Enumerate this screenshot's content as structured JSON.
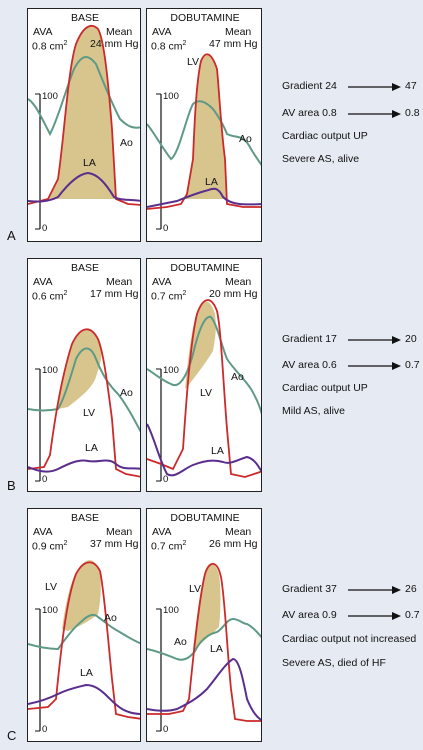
{
  "panels": [
    {
      "letter": "A",
      "base": {
        "title": "BASE",
        "ava_label": "AVA",
        "ava_value": "0.8 cm",
        "ava_sup": "2",
        "mean_label": "Mean",
        "mean_value": "24 mm Hg",
        "tick_100": "100",
        "tick_0": "0",
        "lv": "",
        "ao": "Ao",
        "la": "LA"
      },
      "dob": {
        "title": "DOBUTAMINE",
        "ava_label": "AVA",
        "ava_value": "0.8 cm",
        "ava_sup": "2",
        "mean_label": "Mean",
        "mean_value": "47 mm Hg",
        "tick_100": "100",
        "tick_0": "0",
        "lv": "LV",
        "ao": "Ao",
        "la": "LA"
      },
      "summary": {
        "gradient_label": "Gradient 24",
        "gradient_to": "47",
        "area_label": "AV area 0.8",
        "area_to": "0.8",
        "co": "Cardiac output UP",
        "outcome": "Severe AS, alive"
      }
    },
    {
      "letter": "B",
      "base": {
        "title": "BASE",
        "ava_label": "AVA",
        "ava_value": "0.6 cm",
        "ava_sup": "2",
        "mean_label": "Mean",
        "mean_value": "17 mm Hg",
        "tick_100": "100",
        "tick_0": "0",
        "lv": "LV",
        "ao": "Ao",
        "la": "LA"
      },
      "dob": {
        "title": "DOBUTAMINE",
        "ava_label": "AVA",
        "ava_value": "0.7 cm",
        "ava_sup": "2",
        "mean_label": "Mean",
        "mean_value": "20 mm Hg",
        "tick_100": "100",
        "tick_0": "0",
        "lv": "LV",
        "ao": "Ao",
        "la": "LA"
      },
      "summary": {
        "gradient_label": "Gradient 17",
        "gradient_to": "20",
        "area_label": "AV area 0.6",
        "area_to": "0.7",
        "co": "Cardiac output UP",
        "outcome": "Mild AS, alive"
      }
    },
    {
      "letter": "C",
      "base": {
        "title": "BASE",
        "ava_label": "AVA",
        "ava_value": "0.9 cm",
        "ava_sup": "2",
        "mean_label": "Mean",
        "mean_value": "37 mm Hg",
        "tick_100": "100",
        "tick_0": "0",
        "lv": "LV",
        "ao": "Ao",
        "la": "LA"
      },
      "dob": {
        "title": "DOBUTAMINE",
        "ava_label": "AVA",
        "ava_value": "0.7 cm",
        "ava_sup": "2",
        "mean_label": "Mean",
        "mean_value": "26 mm Hg",
        "tick_100": "100",
        "tick_0": "0",
        "lv": "LV",
        "ao": "Ao",
        "la": "LA"
      },
      "summary": {
        "gradient_label": "Gradient 37",
        "gradient_to": "26",
        "area_label": "AV area 0.9",
        "area_to": "0.7",
        "co": "Cardiac output not increased",
        "outcome": "Severe AS, died of HF"
      }
    }
  ],
  "colors": {
    "lv": "#cc2a2a",
    "ao": "#5e9a85",
    "la": "#5a2e8c",
    "fill": "#d8c58e",
    "bg": "#e6ebf3"
  }
}
